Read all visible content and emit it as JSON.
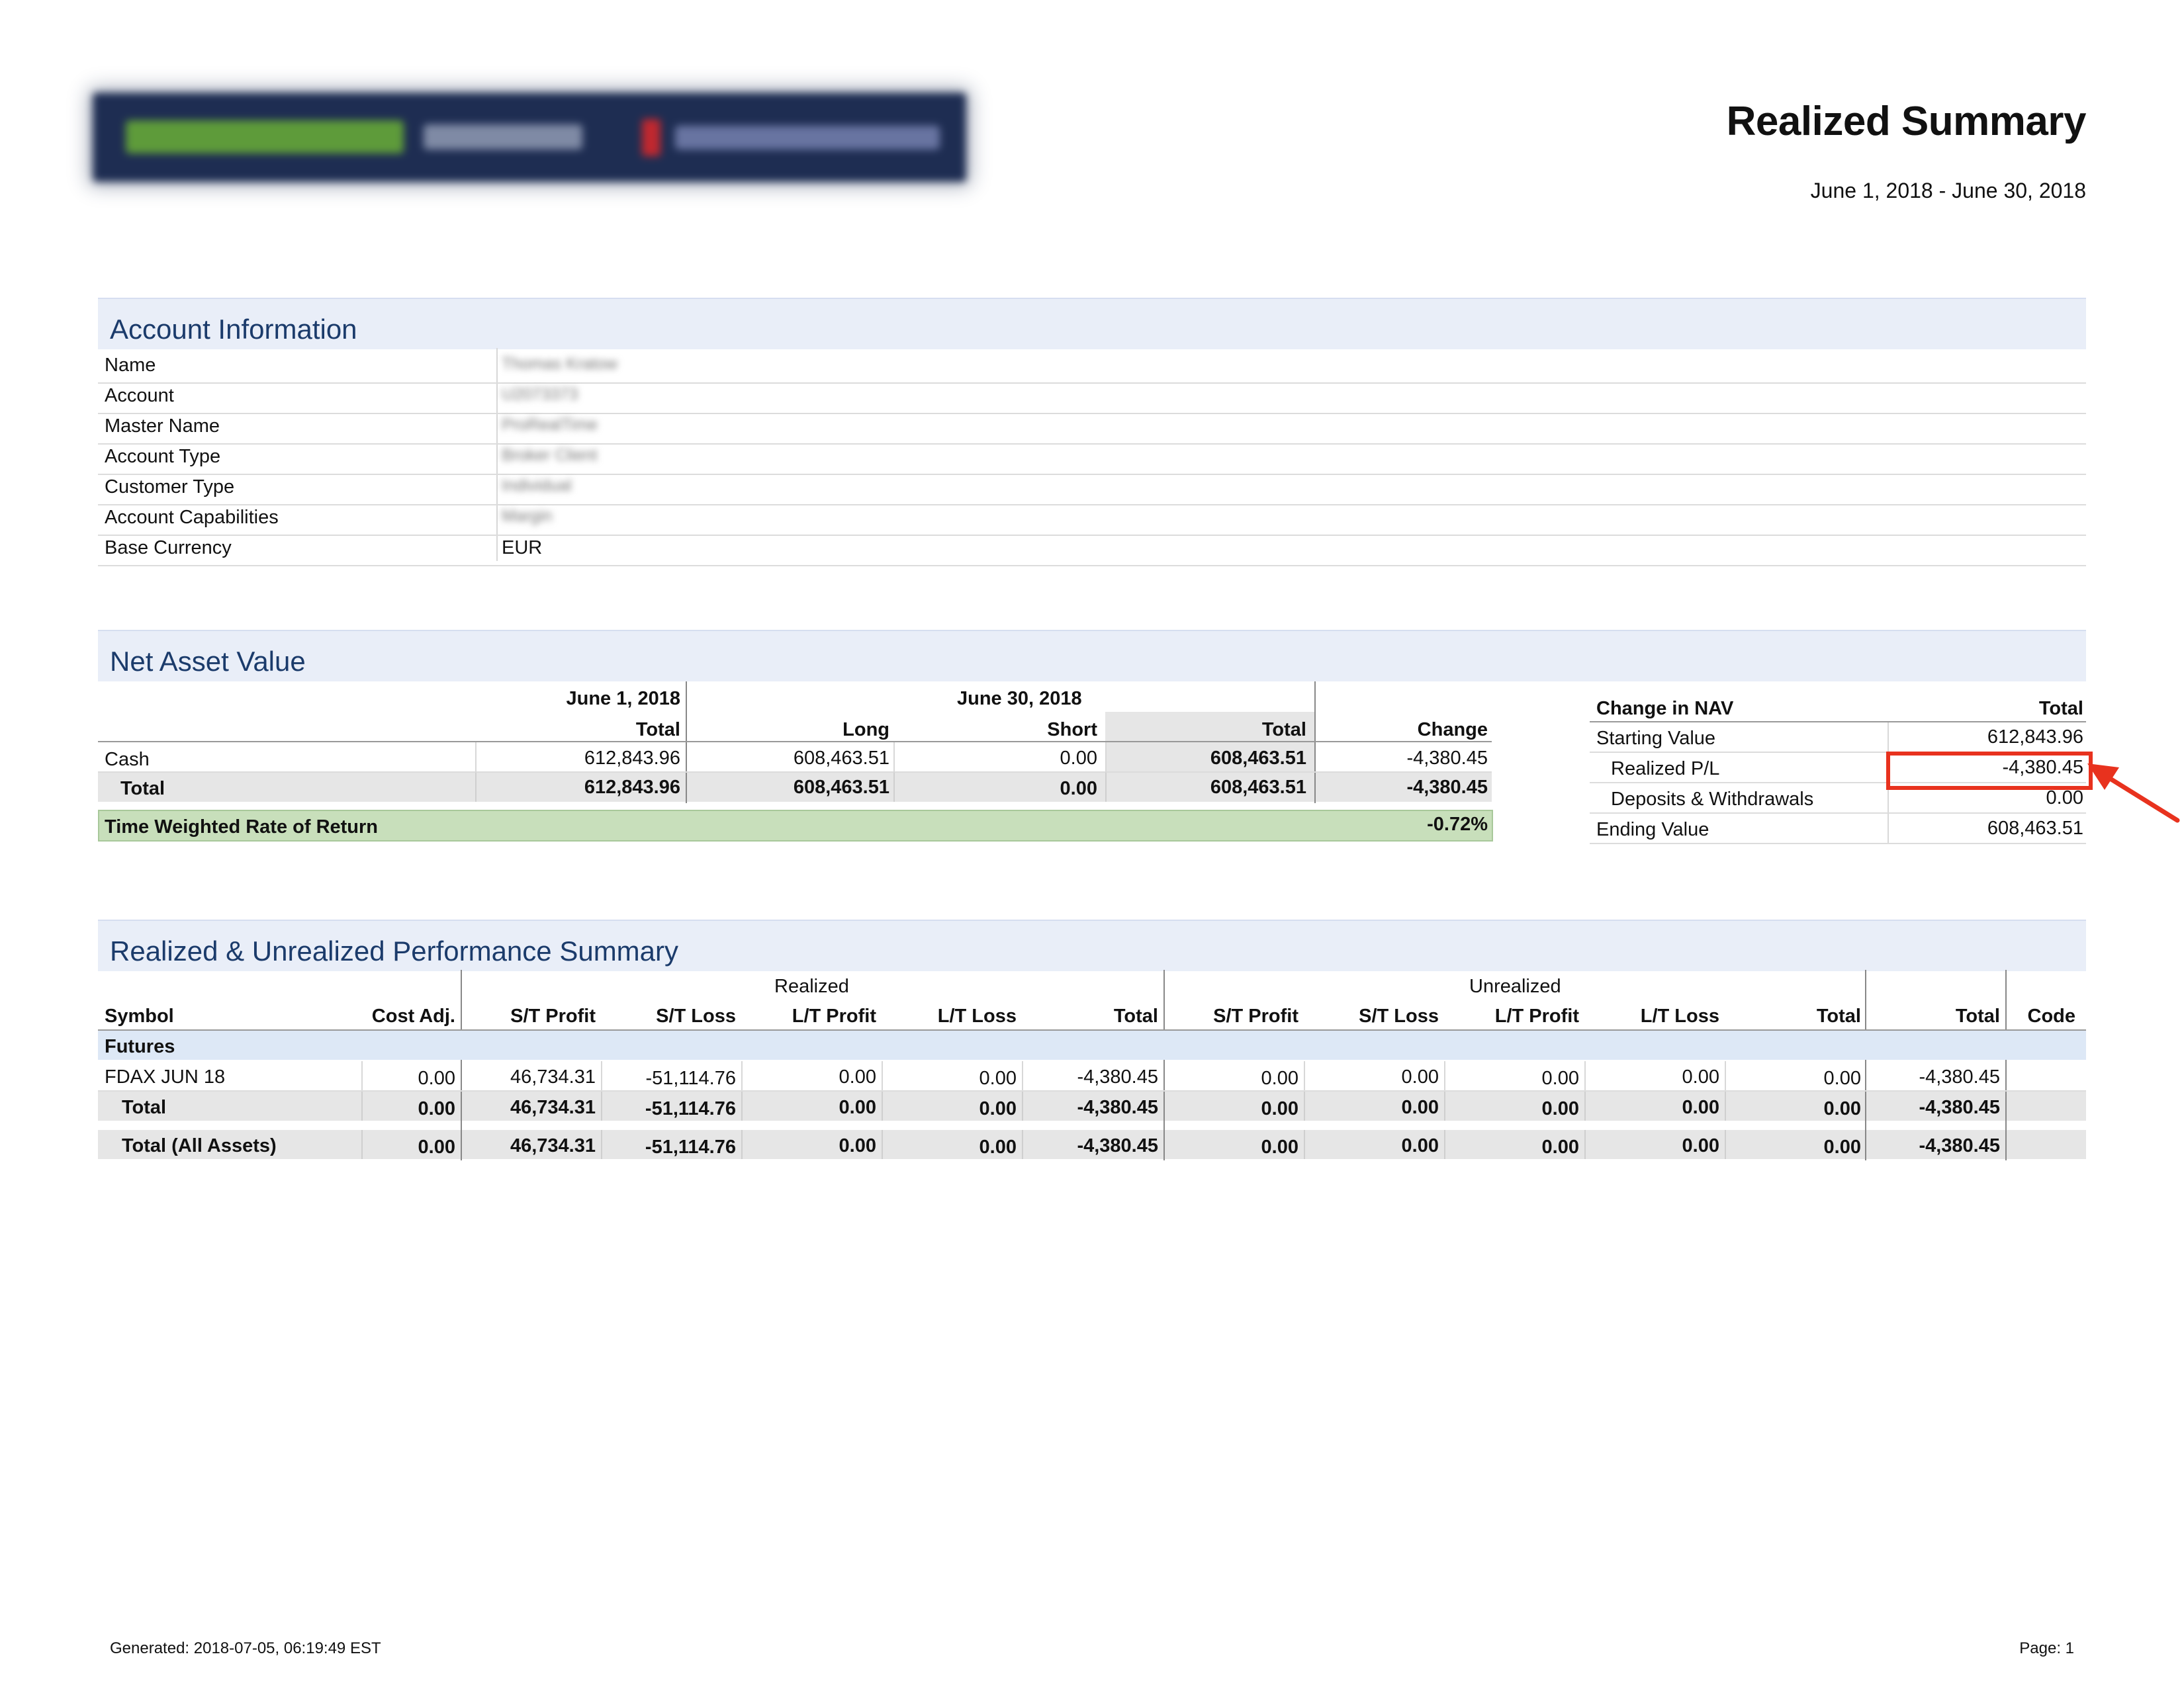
{
  "header": {
    "title": "Realized Summary",
    "period": "June 1, 2018 - June 30, 2018"
  },
  "account_info": {
    "heading": "Account Information",
    "rows": [
      {
        "label": "Name",
        "value": "Thomas Kratow"
      },
      {
        "label": "Account",
        "value": "U2073373"
      },
      {
        "label": "Master Name",
        "value": "ProRealTime"
      },
      {
        "label": "Account Type",
        "value": "Broker Client"
      },
      {
        "label": "Customer Type",
        "value": "Individual"
      },
      {
        "label": "Account Capabilities",
        "value": "Margin"
      },
      {
        "label": "Base Currency",
        "value": "EUR"
      }
    ]
  },
  "nav": {
    "heading": "Net Asset Value",
    "date_start": "June 1, 2018",
    "date_end": "June 30, 2018",
    "columns": [
      "Total",
      "Long",
      "Short",
      "Total",
      "Change"
    ],
    "rows": [
      {
        "label": "Cash",
        "start_total": "612,843.96",
        "long": "608,463.51",
        "short": "0.00",
        "end_total": "608,463.51",
        "change": "-4,380.45"
      },
      {
        "label": "Total",
        "start_total": "612,843.96",
        "long": "608,463.51",
        "short": "0.00",
        "end_total": "608,463.51",
        "change": "-4,380.45"
      }
    ],
    "twrr_label": "Time Weighted Rate of Return",
    "twrr_value": "-0.72%"
  },
  "change_in_nav": {
    "col_label": "Change in NAV",
    "col_total": "Total",
    "rows": [
      {
        "label": "Starting Value",
        "value": "612,843.96"
      },
      {
        "label": "Realized P/L",
        "value": "-4,380.45"
      },
      {
        "label": "Deposits & Withdrawals",
        "value": "0.00"
      },
      {
        "label": "Ending Value",
        "value": "608,463.51"
      }
    ]
  },
  "performance": {
    "heading": "Realized & Unrealized Performance Summary",
    "group_realized": "Realized",
    "group_unrealized": "Unrealized",
    "columns": [
      "Symbol",
      "Cost Adj.",
      "S/T Profit",
      "S/T Loss",
      "L/T Profit",
      "L/T Loss",
      "Total",
      "S/T Profit",
      "S/T Loss",
      "L/T Profit",
      "L/T Loss",
      "Total",
      "Total",
      "Code"
    ],
    "category": "Futures",
    "rows": [
      {
        "cells": [
          "FDAX JUN 18",
          "0.00",
          "46,734.31",
          "-51,114.76",
          "0.00",
          "0.00",
          "-4,380.45",
          "0.00",
          "0.00",
          "0.00",
          "0.00",
          "0.00",
          "-4,380.45",
          ""
        ]
      },
      {
        "cells": [
          "Total",
          "0.00",
          "46,734.31",
          "-51,114.76",
          "0.00",
          "0.00",
          "-4,380.45",
          "0.00",
          "0.00",
          "0.00",
          "0.00",
          "0.00",
          "-4,380.45",
          ""
        ]
      },
      {
        "cells": [
          "Total (All Assets)",
          "0.00",
          "46,734.31",
          "-51,114.76",
          "0.00",
          "0.00",
          "-4,380.45",
          "0.00",
          "0.00",
          "0.00",
          "0.00",
          "0.00",
          "-4,380.45",
          ""
        ]
      }
    ]
  },
  "footer": {
    "generated": "Generated: 2018-07-05, 06:19:49 EST",
    "page": "Page: 1"
  },
  "colors": {
    "section_bg": "#e9eef8",
    "section_text": "#1b3b6b",
    "highlight": "#e8321e",
    "twrr_bg": "#c8dfbb"
  }
}
